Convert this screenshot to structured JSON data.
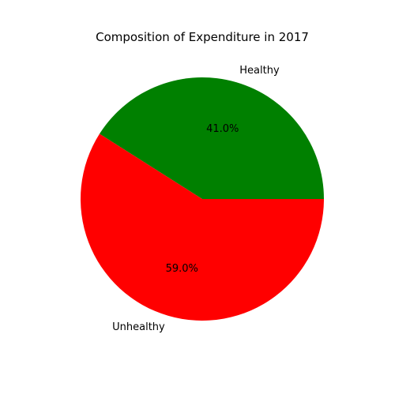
{
  "chart_data": {
    "type": "pie",
    "title": "Composition of Expenditure in 2017",
    "slices": [
      {
        "label": "Healthy",
        "value": 41.0,
        "pct_label": "41.0%",
        "color": "#008000"
      },
      {
        "label": "Unhealthy",
        "value": 59.0,
        "pct_label": "59.0%",
        "color": "#ff0000"
      }
    ],
    "start_angle_deg": 0,
    "direction": "counterclockwise",
    "legend": "none"
  }
}
